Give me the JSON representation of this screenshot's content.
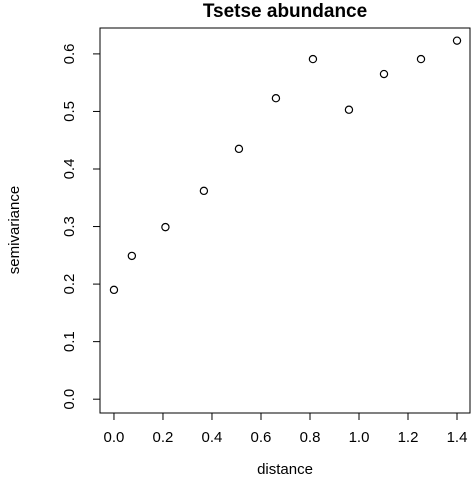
{
  "chart_data": {
    "type": "scatter",
    "title": "Tsetse abundance",
    "x_label": "distance",
    "y_label": "semivariance",
    "x": [
      0.0,
      0.073,
      0.21,
      0.367,
      0.51,
      0.661,
      0.812,
      0.959,
      1.102,
      1.253,
      1.4
    ],
    "values": [
      0.19,
      0.249,
      0.299,
      0.362,
      0.435,
      0.523,
      0.591,
      0.503,
      0.565,
      0.591,
      0.623
    ],
    "color": "#000000",
    "xlim": [
      -0.057,
      1.453
    ],
    "xticks": [
      {
        "value": 0,
        "label": "0.0"
      },
      0.2,
      0.4,
      0.6,
      0.8,
      {
        "value": 1,
        "label": "1.0"
      },
      1.2,
      1.4
    ],
    "ylim": [
      -0.024,
      0.645
    ],
    "yticks": [
      {
        "value": 0,
        "label": "0.0"
      },
      0.1,
      0.2,
      0.3,
      0.4,
      0.5,
      0.6
    ]
  }
}
